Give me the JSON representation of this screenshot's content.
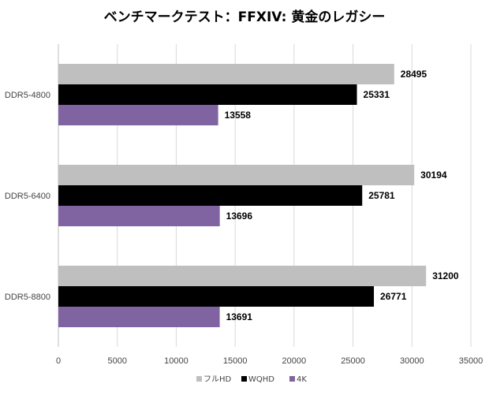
{
  "chart_data": {
    "type": "bar",
    "orientation": "horizontal",
    "title": "ベンチマークテスト：FFXIV: 黄金のレガシー",
    "xlabel": "",
    "ylabel": "",
    "categories": [
      "DDR5-4800",
      "DDR5-6400",
      "DDR5-8800"
    ],
    "series": [
      {
        "name": "フルHD",
        "color": "#bfbfbf",
        "values": [
          28495,
          30194,
          31200
        ]
      },
      {
        "name": "WQHD",
        "color": "#000000",
        "values": [
          25331,
          25781,
          26771
        ]
      },
      {
        "name": "4K",
        "color": "#8064a2",
        "values": [
          13558,
          13696,
          13691
        ]
      }
    ],
    "xlim": [
      0,
      35000
    ],
    "xticks": [
      0,
      5000,
      10000,
      15000,
      20000,
      25000,
      30000,
      35000
    ],
    "grid": true,
    "legend_position": "bottom"
  }
}
